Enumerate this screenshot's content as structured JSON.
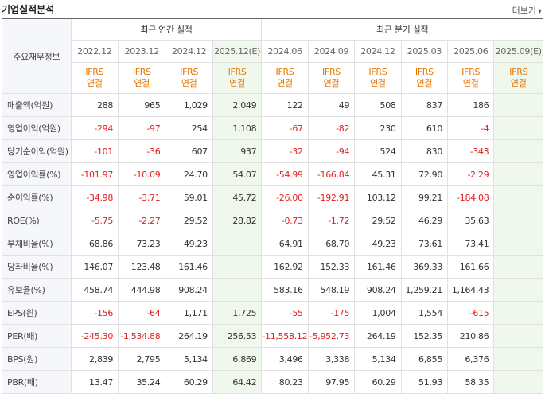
{
  "section_title": "기업실적분석",
  "more_label": "더보기",
  "more_icon": "chevron-down-icon",
  "label_header": "주요재무정보",
  "groups": {
    "annual": "최근 연간 실적",
    "quarter": "최근 분기 실적"
  },
  "periods": [
    "2022.12",
    "2023.12",
    "2024.12",
    "2025.12(E)",
    "2024.06",
    "2024.09",
    "2024.12",
    "2025.03",
    "2025.06",
    "2025.09(E)"
  ],
  "standard": {
    "line1": "IFRS",
    "line2": "연결"
  },
  "colors": {
    "negative": "#e02020",
    "ifrs": "#e57500",
    "estimate_bg": "#f0f7ec",
    "label_bg": "#f5f7fa"
  },
  "rows": [
    {
      "label": "매출액(억원)",
      "values": [
        "288",
        "965",
        "1,029",
        "2,049",
        "122",
        "49",
        "508",
        "837",
        "186",
        ""
      ]
    },
    {
      "label": "영업이익(억원)",
      "values": [
        "-294",
        "-97",
        "254",
        "1,108",
        "-67",
        "-82",
        "230",
        "610",
        "-4",
        ""
      ]
    },
    {
      "label": "당기순이익(억원)",
      "values": [
        "-101",
        "-36",
        "607",
        "937",
        "-32",
        "-94",
        "524",
        "830",
        "-343",
        ""
      ]
    },
    {
      "label": "영업이익률(%)",
      "values": [
        "-101.97",
        "-10.09",
        "24.70",
        "54.07",
        "-54.99",
        "-166.84",
        "45.31",
        "72.90",
        "-2.29",
        ""
      ]
    },
    {
      "label": "순이익률(%)",
      "values": [
        "-34.98",
        "-3.71",
        "59.01",
        "45.72",
        "-26.00",
        "-192.91",
        "103.12",
        "99.21",
        "-184.08",
        ""
      ]
    },
    {
      "label": "ROE(%)",
      "values": [
        "-5.75",
        "-2.27",
        "29.52",
        "28.82",
        "-0.73",
        "-1.72",
        "29.52",
        "46.29",
        "35.63",
        ""
      ]
    },
    {
      "label": "부채비율(%)",
      "values": [
        "68.86",
        "73.23",
        "49.23",
        "",
        "64.91",
        "68.70",
        "49.23",
        "73.61",
        "73.41",
        ""
      ]
    },
    {
      "label": "당좌비율(%)",
      "values": [
        "146.07",
        "123.48",
        "161.46",
        "",
        "162.92",
        "152.33",
        "161.46",
        "369.33",
        "161.66",
        ""
      ]
    },
    {
      "label": "유보율(%)",
      "values": [
        "458.74",
        "444.98",
        "908.24",
        "",
        "583.16",
        "548.19",
        "908.24",
        "1,259.21",
        "1,164.43",
        ""
      ]
    },
    {
      "label": "EPS(원)",
      "values": [
        "-156",
        "-64",
        "1,171",
        "1,725",
        "-55",
        "-175",
        "1,004",
        "1,554",
        "-615",
        ""
      ]
    },
    {
      "label": "PER(배)",
      "values": [
        "-245.30",
        "-1,534.88",
        "264.19",
        "256.53",
        "-11,558.12",
        "-5,952.73",
        "264.19",
        "152.35",
        "210.86",
        ""
      ]
    },
    {
      "label": "BPS(원)",
      "values": [
        "2,839",
        "2,795",
        "5,134",
        "6,869",
        "3,496",
        "3,338",
        "5,134",
        "6,855",
        "6,376",
        ""
      ]
    },
    {
      "label": "PBR(배)",
      "values": [
        "13.47",
        "35.24",
        "60.29",
        "64.42",
        "80.23",
        "97.95",
        "60.29",
        "51.93",
        "58.35",
        ""
      ]
    }
  ]
}
